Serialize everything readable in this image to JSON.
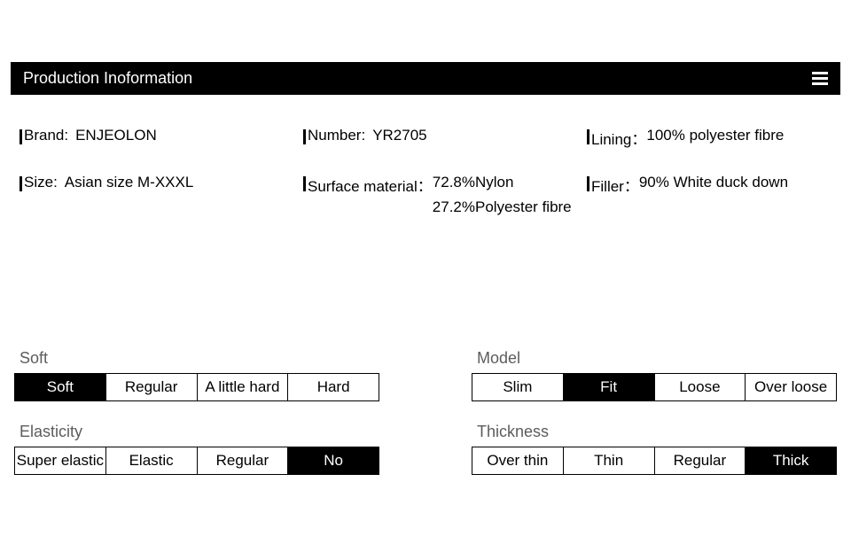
{
  "header": {
    "title": "Production Inoformation"
  },
  "info": {
    "brand_label": "Brand:",
    "brand_value": "ENJEOLON",
    "number_label": "Number:",
    "number_value": "YR2705",
    "lining_label": "Lining：",
    "lining_value": "100% polyester fibre",
    "size_label": "Size:",
    "size_value": "Asian size M-XXXL",
    "surface_label": "Surface material：",
    "surface_value_line1": "72.8%Nylon",
    "surface_value_line2": "27.2%Polyester fibre",
    "filler_label": "Filler：",
    "filler_value": "90% White duck down"
  },
  "selectors": {
    "soft": {
      "title": "Soft",
      "options": [
        "Soft",
        "Regular",
        "A little hard",
        "Hard"
      ],
      "selected_index": 0
    },
    "model": {
      "title": "Model",
      "options": [
        "Slim",
        "Fit",
        "Loose",
        "Over loose"
      ],
      "selected_index": 1
    },
    "elasticity": {
      "title": "Elasticity",
      "options": [
        "Super elastic",
        "Elastic",
        "Regular",
        "No"
      ],
      "selected_index": 3
    },
    "thickness": {
      "title": "Thickness",
      "options": [
        "Over thin",
        "Thin",
        "Regular",
        "Thick"
      ],
      "selected_index": 3
    }
  },
  "colors": {
    "header_bg": "#000000",
    "header_fg": "#ffffff",
    "body_bg": "#ffffff",
    "text": "#000000",
    "selector_title": "#5c5c5c",
    "selected_bg": "#000000",
    "selected_fg": "#ffffff",
    "border": "#000000"
  }
}
